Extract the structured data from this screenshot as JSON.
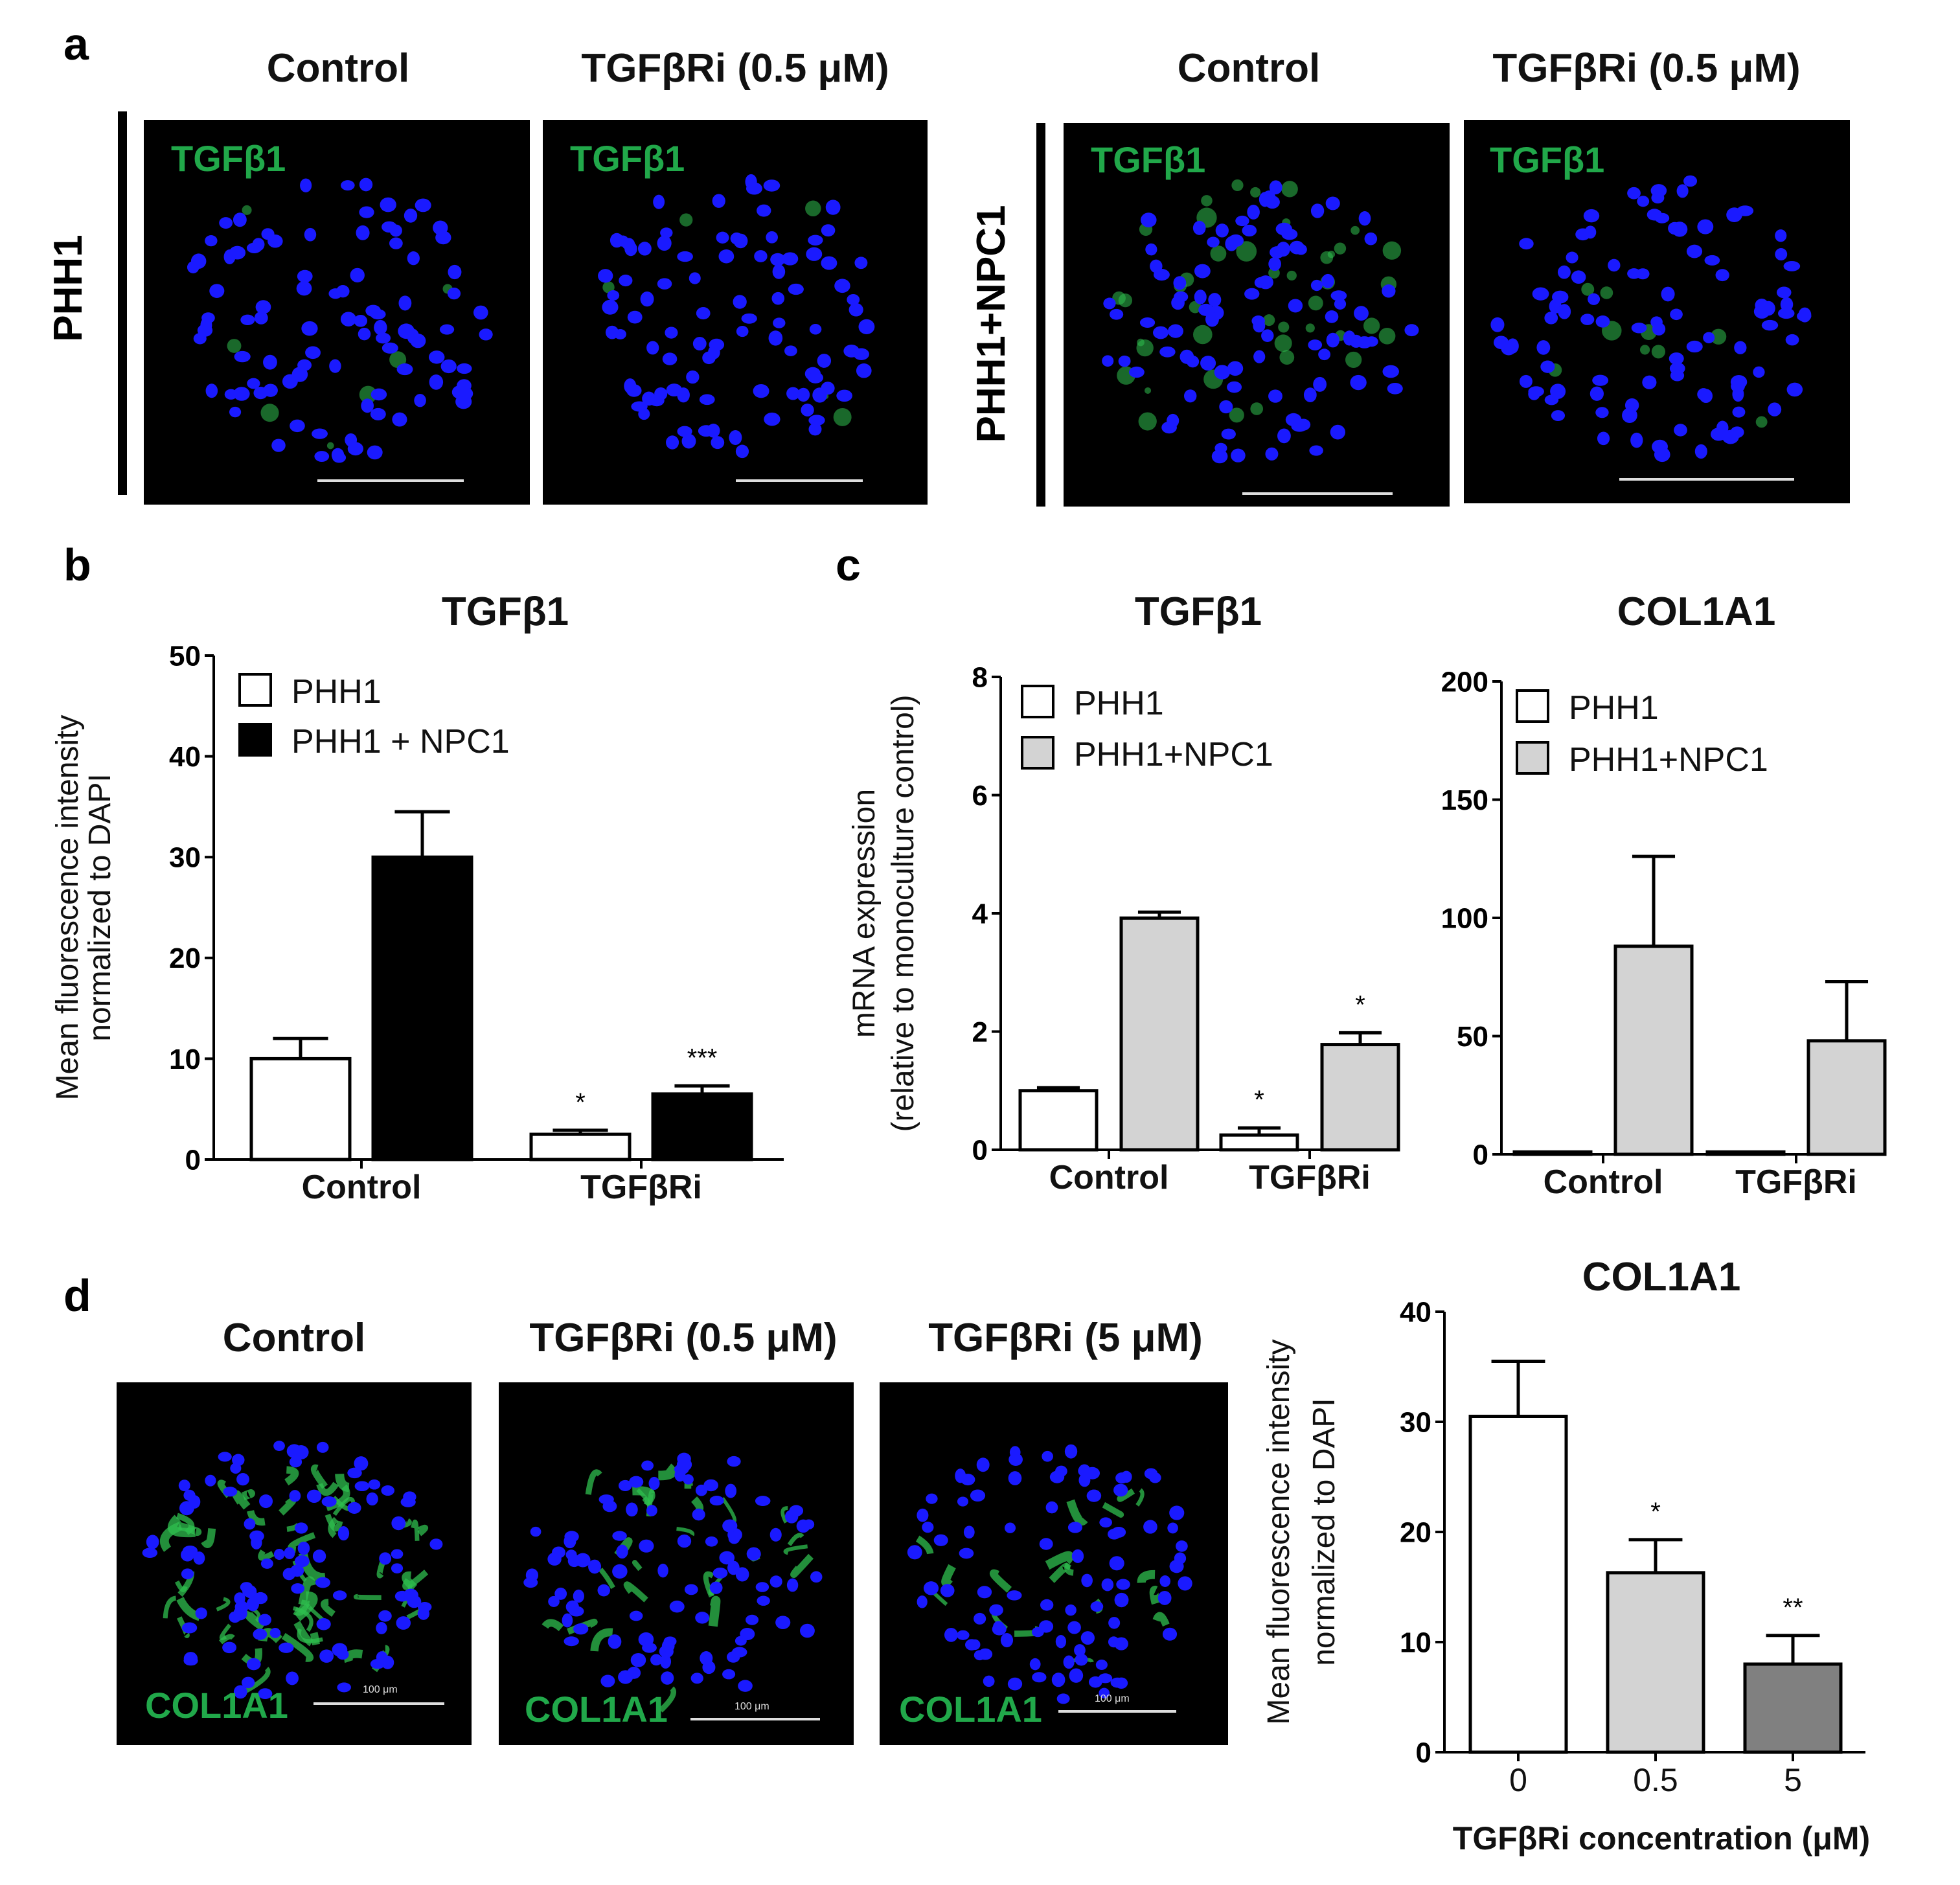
{
  "panel_a": {
    "letter": "a",
    "groups": [
      {
        "row_label": "PHH1",
        "headers": [
          "Control",
          "TGFβRi (0.5 μM)"
        ],
        "stain": "TGFβ1"
      },
      {
        "row_label": "PHH1+NPC1",
        "headers": [
          "Control",
          "TGFβRi (0.5 μM)"
        ],
        "stain": "TGFβ1"
      }
    ]
  },
  "panel_b": {
    "letter": "b"
  },
  "panel_c": {
    "letter": "c"
  },
  "panel_d": {
    "letter": "d",
    "headers": [
      "Control",
      "TGFβRi (0.5 μM)",
      "TGFβRi (5 μM)"
    ],
    "stain": "COL1A1",
    "scale_label": "100 μm"
  },
  "colors": {
    "dapi": "#1a1aff",
    "stain_green": "#21a84a",
    "black": "#000000",
    "light_gray": "#d3d3d3",
    "dark_gray": "#808080",
    "white": "#ffffff"
  },
  "chart_data": [
    {
      "id": "b",
      "type": "bar",
      "title": "TGFβ1",
      "ylabel": [
        "Mean fluorescence intensity",
        "normalized to DAPI"
      ],
      "xlabel": "",
      "categories": [
        "Control",
        "TGFβRi"
      ],
      "ylim": [
        0,
        50
      ],
      "yticks": [
        0,
        10,
        20,
        30,
        40,
        50
      ],
      "legend": "top-left",
      "grid": false,
      "series": [
        {
          "name": "PHH1",
          "color": "#ffffff",
          "values": [
            10.0,
            2.5
          ],
          "errors": [
            2.0,
            0.4
          ],
          "sig": [
            "",
            "*"
          ]
        },
        {
          "name": "PHH1 + NPC1",
          "color": "#000000",
          "values": [
            30.0,
            6.5
          ],
          "errors": [
            4.5,
            0.8
          ],
          "sig": [
            "",
            "***"
          ]
        }
      ]
    },
    {
      "id": "c1",
      "type": "bar",
      "title": "TGFβ1",
      "ylabel": [
        "mRNA expression",
        "(relative to monoculture control)"
      ],
      "xlabel": "",
      "categories": [
        "Control",
        "TGFβRi"
      ],
      "ylim": [
        0,
        8
      ],
      "yticks": [
        0,
        2,
        4,
        6,
        8
      ],
      "legend": "top-left",
      "grid": false,
      "series": [
        {
          "name": "PHH1",
          "color": "#ffffff",
          "values": [
            1.0,
            0.25
          ],
          "errors": [
            0.05,
            0.12
          ],
          "sig": [
            "",
            "*"
          ]
        },
        {
          "name": "PHH1+NPC1",
          "color": "#d3d3d3",
          "values": [
            3.92,
            1.78
          ],
          "errors": [
            0.1,
            0.2
          ],
          "sig": [
            "",
            "*"
          ]
        }
      ]
    },
    {
      "id": "c2",
      "type": "bar",
      "title": "COL1A1",
      "ylabel": [],
      "xlabel": "",
      "categories": [
        "Control",
        "TGFβRi"
      ],
      "ylim": [
        0,
        200
      ],
      "yticks": [
        0,
        50,
        100,
        150,
        200
      ],
      "legend": "top-left",
      "grid": false,
      "series": [
        {
          "name": "PHH1",
          "color": "#ffffff",
          "values": [
            1.0,
            1.0
          ],
          "errors": [
            0,
            0
          ],
          "sig": [
            "",
            ""
          ]
        },
        {
          "name": "PHH1+NPC1",
          "color": "#d3d3d3",
          "values": [
            88.0,
            48.0
          ],
          "errors": [
            38.0,
            25.0
          ],
          "sig": [
            "",
            ""
          ]
        }
      ]
    },
    {
      "id": "d",
      "type": "bar",
      "title": "COL1A1",
      "ylabel": [
        "Mean fluorescence intensity",
        "normalized to DAPI"
      ],
      "xlabel": "TGFβRi concentration (μM)",
      "categories": [
        "0",
        "0.5",
        "5"
      ],
      "ylim": [
        0,
        40
      ],
      "yticks": [
        0,
        10,
        20,
        30,
        40
      ],
      "legend": "none",
      "grid": false,
      "series": [
        {
          "name": "",
          "colors": [
            "#ffffff",
            "#d3d3d3",
            "#808080"
          ],
          "values": [
            30.5,
            16.3,
            8.0
          ],
          "errors": [
            5.0,
            3.0,
            2.6
          ],
          "sig": [
            "",
            "*",
            "**"
          ]
        }
      ]
    }
  ]
}
